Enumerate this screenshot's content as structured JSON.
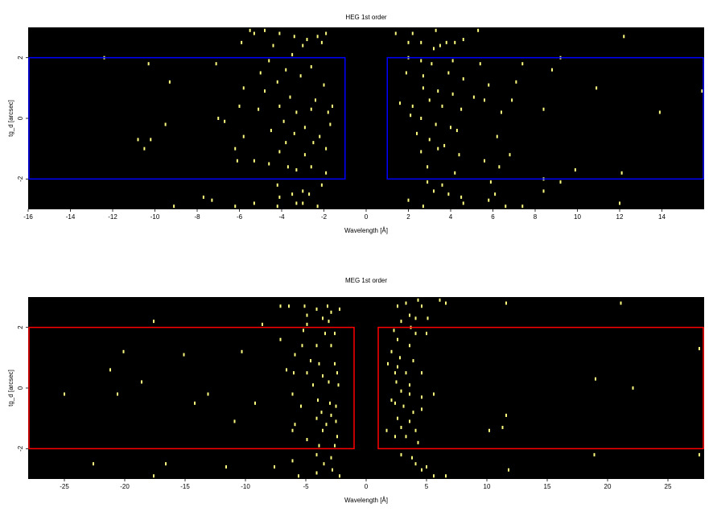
{
  "chart_data": [
    {
      "type": "scatter",
      "title": "HEG 1st order",
      "xlabel": "Wavelength [Å]",
      "ylabel": "tg_d [arcsec]",
      "xlim": [
        -16,
        16
      ],
      "ylim": [
        -3,
        3
      ],
      "xticks": [
        "-16",
        "-14",
        "-12",
        "-10",
        "-8",
        "-6",
        "-4",
        "-2",
        "0",
        "2",
        "4",
        "6",
        "8",
        "10",
        "12",
        "14"
      ],
      "yticks": [
        "-2",
        "0",
        "2"
      ],
      "background": "#000000",
      "point_color": "#ffff80",
      "region_color": "#0000ff",
      "regions": [
        {
          "x0": -16,
          "x1": -1,
          "y0": -2,
          "y1": 2
        },
        {
          "x0": 1,
          "x1": 16,
          "y0": -2,
          "y1": 2
        }
      ],
      "points": [
        [
          -5.5,
          2.9
        ],
        [
          -5.3,
          2.8
        ],
        [
          -4.8,
          2.9
        ],
        [
          -4.1,
          2.8
        ],
        [
          -3.4,
          2.7
        ],
        [
          -2.8,
          2.6
        ],
        [
          -2.3,
          2.7
        ],
        [
          -1.9,
          2.8
        ],
        [
          -5.9,
          2.5
        ],
        [
          -4.4,
          2.4
        ],
        [
          -3.0,
          2.4
        ],
        [
          -2.1,
          2.5
        ],
        [
          -12.4,
          2.0
        ],
        [
          -10.3,
          1.8
        ],
        [
          -7.1,
          1.8
        ],
        [
          -4.6,
          1.9
        ],
        [
          -3.5,
          2.1
        ],
        [
          -2.6,
          1.7
        ],
        [
          -3.8,
          1.6
        ],
        [
          -5.0,
          1.5
        ],
        [
          -9.3,
          1.2
        ],
        [
          -4.2,
          1.2
        ],
        [
          -3.1,
          1.4
        ],
        [
          -2.0,
          1.1
        ],
        [
          -5.8,
          1.0
        ],
        [
          -4.8,
          0.9
        ],
        [
          -3.6,
          0.7
        ],
        [
          -2.4,
          0.6
        ],
        [
          -1.6,
          0.4
        ],
        [
          -6.0,
          0.4
        ],
        [
          -5.1,
          0.3
        ],
        [
          -4.1,
          0.4
        ],
        [
          -3.3,
          0.2
        ],
        [
          -2.6,
          0.3
        ],
        [
          -1.8,
          0.2
        ],
        [
          -3.9,
          -0.1
        ],
        [
          -7.0,
          0.0
        ],
        [
          -6.7,
          -0.1
        ],
        [
          -9.5,
          -0.2
        ],
        [
          -2.9,
          -0.3
        ],
        [
          -1.7,
          -0.2
        ],
        [
          -4.5,
          -0.4
        ],
        [
          -3.4,
          -0.5
        ],
        [
          -2.2,
          -0.6
        ],
        [
          -10.8,
          -0.7
        ],
        [
          -10.2,
          -0.7
        ],
        [
          -5.8,
          -0.6
        ],
        [
          -3.8,
          -0.8
        ],
        [
          -2.5,
          -0.8
        ],
        [
          -10.5,
          -1.0
        ],
        [
          -6.2,
          -1.0
        ],
        [
          -4.1,
          -1.1
        ],
        [
          -2.9,
          -1.2
        ],
        [
          -1.9,
          -1.0
        ],
        [
          -6.1,
          -1.4
        ],
        [
          -5.3,
          -1.4
        ],
        [
          -4.6,
          -1.5
        ],
        [
          -3.7,
          -1.6
        ],
        [
          -3.3,
          -1.7
        ],
        [
          -2.6,
          -1.6
        ],
        [
          -1.9,
          -1.8
        ],
        [
          -4.2,
          -2.2
        ],
        [
          -3.0,
          -2.4
        ],
        [
          -2.1,
          -2.2
        ],
        [
          -4.1,
          -2.6
        ],
        [
          -3.5,
          -2.5
        ],
        [
          -2.7,
          -2.5
        ],
        [
          -7.7,
          -2.6
        ],
        [
          -7.3,
          -2.7
        ],
        [
          -6.2,
          -2.9
        ],
        [
          -5.3,
          -2.8
        ],
        [
          -4.2,
          -2.9
        ],
        [
          -3.0,
          -2.8
        ],
        [
          -2.3,
          -2.9
        ],
        [
          -9.1,
          -2.9
        ],
        [
          -3.3,
          -2.8
        ],
        [
          1.4,
          2.8
        ],
        [
          2.2,
          2.8
        ],
        [
          3.3,
          2.9
        ],
        [
          5.3,
          2.9
        ],
        [
          12.2,
          2.7
        ],
        [
          2.0,
          2.5
        ],
        [
          2.6,
          2.5
        ],
        [
          3.2,
          2.3
        ],
        [
          3.5,
          2.4
        ],
        [
          4.2,
          2.5
        ],
        [
          4.6,
          2.6
        ],
        [
          3.8,
          2.5
        ],
        [
          2.0,
          2.0
        ],
        [
          2.6,
          1.9
        ],
        [
          3.1,
          1.8
        ],
        [
          4.1,
          1.9
        ],
        [
          5.4,
          1.8
        ],
        [
          7.4,
          1.8
        ],
        [
          8.8,
          1.6
        ],
        [
          9.2,
          2.0
        ],
        [
          1.9,
          1.5
        ],
        [
          2.7,
          1.4
        ],
        [
          3.9,
          1.5
        ],
        [
          4.6,
          1.3
        ],
        [
          5.8,
          1.1
        ],
        [
          7.1,
          1.2
        ],
        [
          10.9,
          1.0
        ],
        [
          2.7,
          1.0
        ],
        [
          3.4,
          0.9
        ],
        [
          4.1,
          0.8
        ],
        [
          5.1,
          0.7
        ],
        [
          5.6,
          0.6
        ],
        [
          6.9,
          0.6
        ],
        [
          15.9,
          0.9
        ],
        [
          1.6,
          0.5
        ],
        [
          2.2,
          0.4
        ],
        [
          3.0,
          0.6
        ],
        [
          3.6,
          0.4
        ],
        [
          4.5,
          0.3
        ],
        [
          6.4,
          0.2
        ],
        [
          8.4,
          0.3
        ],
        [
          13.9,
          0.2
        ],
        [
          2.1,
          0.1
        ],
        [
          2.6,
          0.0
        ],
        [
          3.3,
          -0.2
        ],
        [
          4.0,
          -0.3
        ],
        [
          4.3,
          -0.4
        ],
        [
          6.2,
          -0.6
        ],
        [
          2.4,
          -0.5
        ],
        [
          3.0,
          -0.7
        ],
        [
          3.7,
          -0.9
        ],
        [
          2.6,
          -1.1
        ],
        [
          3.4,
          -1.0
        ],
        [
          4.4,
          -1.2
        ],
        [
          5.6,
          -1.4
        ],
        [
          6.8,
          -1.2
        ],
        [
          2.9,
          -1.6
        ],
        [
          4.2,
          -1.8
        ],
        [
          6.3,
          -1.6
        ],
        [
          9.9,
          -1.7
        ],
        [
          12.1,
          -1.8
        ],
        [
          8.4,
          -2.0
        ],
        [
          9.2,
          -2.1
        ],
        [
          2.9,
          -2.1
        ],
        [
          3.6,
          -2.2
        ],
        [
          5.9,
          -2.1
        ],
        [
          3.2,
          -2.4
        ],
        [
          3.9,
          -2.5
        ],
        [
          4.5,
          -2.6
        ],
        [
          6.1,
          -2.5
        ],
        [
          8.4,
          -2.4
        ],
        [
          2.0,
          -2.7
        ],
        [
          5.8,
          -2.7
        ],
        [
          6.6,
          -2.9
        ],
        [
          7.4,
          -2.9
        ],
        [
          12.0,
          -2.8
        ],
        [
          2.7,
          -2.9
        ],
        [
          4.6,
          -2.8
        ]
      ]
    },
    {
      "type": "scatter",
      "title": "MEG 1st order",
      "xlabel": "Wavelength [Å]",
      "ylabel": "tg_d [arcsec]",
      "xlim": [
        -28,
        28
      ],
      "ylim": [
        -3,
        3
      ],
      "xticks": [
        "-25",
        "-20",
        "-15",
        "-10",
        "-5",
        "0",
        "5",
        "10",
        "15",
        "20",
        "25"
      ],
      "yticks": [
        "-2",
        "0",
        "2"
      ],
      "background": "#000000",
      "point_color": "#ffff80",
      "region_color": "#ff0000",
      "regions": [
        {
          "x0": -28,
          "x1": -1,
          "y0": -2,
          "y1": 2
        },
        {
          "x0": 1,
          "x1": 28,
          "y0": -2,
          "y1": 2
        }
      ],
      "points": [
        [
          -7.1,
          2.7
        ],
        [
          -6.4,
          2.7
        ],
        [
          -5.1,
          2.7
        ],
        [
          -4.1,
          2.6
        ],
        [
          -3.2,
          2.7
        ],
        [
          -2.2,
          2.6
        ],
        [
          -4.9,
          2.4
        ],
        [
          -3.6,
          2.3
        ],
        [
          -2.9,
          2.5
        ],
        [
          -17.6,
          2.2
        ],
        [
          -8.6,
          2.1
        ],
        [
          -4.9,
          2.1
        ],
        [
          -3.1,
          2.2
        ],
        [
          -5.2,
          1.9
        ],
        [
          -3.4,
          1.8
        ],
        [
          -2.6,
          1.8
        ],
        [
          -7.1,
          1.6
        ],
        [
          -5.3,
          1.4
        ],
        [
          -4.1,
          1.4
        ],
        [
          -2.9,
          1.4
        ],
        [
          -20.1,
          1.2
        ],
        [
          -15.1,
          1.1
        ],
        [
          -10.3,
          1.2
        ],
        [
          -5.9,
          1.1
        ],
        [
          -4.6,
          0.9
        ],
        [
          -3.9,
          0.8
        ],
        [
          -2.6,
          0.8
        ],
        [
          -21.2,
          0.6
        ],
        [
          -6.6,
          0.6
        ],
        [
          -6.0,
          0.5
        ],
        [
          -4.9,
          0.5
        ],
        [
          -3.6,
          0.4
        ],
        [
          -2.4,
          0.5
        ],
        [
          -18.6,
          0.2
        ],
        [
          -4.4,
          0.1
        ],
        [
          -3.1,
          0.2
        ],
        [
          -2.3,
          0.1
        ],
        [
          -25.0,
          -0.2
        ],
        [
          -20.6,
          -0.2
        ],
        [
          -13.1,
          -0.2
        ],
        [
          -6.1,
          -0.2
        ],
        [
          -4.0,
          -0.4
        ],
        [
          -3.0,
          -0.5
        ],
        [
          -2.5,
          -0.6
        ],
        [
          -14.2,
          -0.5
        ],
        [
          -9.2,
          -0.5
        ],
        [
          -5.4,
          -0.6
        ],
        [
          -3.7,
          -0.8
        ],
        [
          -2.9,
          -0.9
        ],
        [
          -10.9,
          -1.1
        ],
        [
          -5.9,
          -1.2
        ],
        [
          -4.1,
          -1.0
        ],
        [
          -3.3,
          -1.2
        ],
        [
          -2.5,
          -1.1
        ],
        [
          -6.1,
          -1.4
        ],
        [
          -3.6,
          -1.4
        ],
        [
          -2.4,
          -1.6
        ],
        [
          -4.9,
          -1.7
        ],
        [
          -3.9,
          -1.9
        ],
        [
          -2.6,
          -1.9
        ],
        [
          -4.1,
          -2.2
        ],
        [
          -2.9,
          -2.3
        ],
        [
          -6.1,
          -2.4
        ],
        [
          -3.5,
          -2.5
        ],
        [
          -22.6,
          -2.5
        ],
        [
          -16.6,
          -2.5
        ],
        [
          -11.6,
          -2.6
        ],
        [
          -7.6,
          -2.6
        ],
        [
          -4.1,
          -2.8
        ],
        [
          -2.8,
          -2.7
        ],
        [
          -17.6,
          -2.9
        ],
        [
          -5.6,
          -2.9
        ],
        [
          -2.2,
          -2.9
        ],
        [
          2.6,
          2.7
        ],
        [
          3.3,
          2.8
        ],
        [
          4.3,
          2.9
        ],
        [
          4.6,
          2.7
        ],
        [
          6.1,
          2.9
        ],
        [
          6.6,
          2.8
        ],
        [
          11.6,
          2.8
        ],
        [
          21.1,
          2.8
        ],
        [
          3.6,
          2.4
        ],
        [
          4.1,
          2.3
        ],
        [
          5.1,
          2.3
        ],
        [
          2.9,
          2.2
        ],
        [
          2.3,
          1.9
        ],
        [
          3.7,
          2.0
        ],
        [
          4.1,
          1.8
        ],
        [
          5.0,
          1.8
        ],
        [
          2.6,
          1.6
        ],
        [
          3.6,
          1.4
        ],
        [
          2.1,
          1.2
        ],
        [
          27.6,
          1.3
        ],
        [
          2.8,
          1.0
        ],
        [
          3.9,
          0.9
        ],
        [
          1.8,
          0.8
        ],
        [
          2.6,
          0.7
        ],
        [
          2.4,
          0.5
        ],
        [
          3.3,
          0.5
        ],
        [
          4.6,
          0.5
        ],
        [
          19.0,
          0.3
        ],
        [
          2.5,
          0.2
        ],
        [
          3.6,
          0.1
        ],
        [
          22.1,
          0.0
        ],
        [
          2.9,
          -0.1
        ],
        [
          3.6,
          -0.2
        ],
        [
          4.6,
          -0.3
        ],
        [
          5.6,
          -0.2
        ],
        [
          2.1,
          -0.4
        ],
        [
          2.4,
          -0.5
        ],
        [
          3.1,
          -0.6
        ],
        [
          3.9,
          -0.8
        ],
        [
          4.6,
          -0.7
        ],
        [
          2.6,
          -1.0
        ],
        [
          3.6,
          -1.1
        ],
        [
          11.6,
          -0.9
        ],
        [
          2.9,
          -1.3
        ],
        [
          4.1,
          -1.4
        ],
        [
          10.2,
          -1.4
        ],
        [
          11.3,
          -1.3
        ],
        [
          1.7,
          -1.4
        ],
        [
          2.4,
          -1.6
        ],
        [
          3.3,
          -1.6
        ],
        [
          4.3,
          -1.8
        ],
        [
          2.9,
          -2.2
        ],
        [
          3.8,
          -2.3
        ],
        [
          18.9,
          -2.2
        ],
        [
          27.6,
          -2.2
        ],
        [
          4.1,
          -2.5
        ],
        [
          5.0,
          -2.6
        ],
        [
          4.6,
          -2.7
        ],
        [
          11.8,
          -2.7
        ],
        [
          5.6,
          -2.9
        ],
        [
          6.6,
          -2.9
        ]
      ]
    }
  ]
}
